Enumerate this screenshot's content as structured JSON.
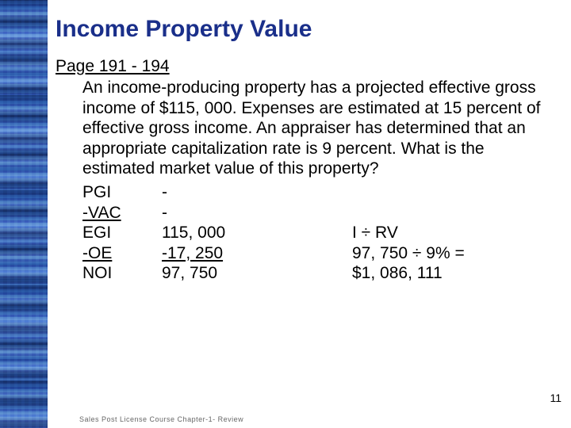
{
  "title": "Income Property Value",
  "page_ref": "Page 191 - 194",
  "paragraph": "An income-producing property has a projected effective gross income of $115, 000.  Expenses are estimated at 15 percent of effective gross income.  An appraiser has determined that an appropriate capitalization rate is 9 percent.  What is the estimated market value of this property?",
  "calc": {
    "rows": [
      {
        "label": "PGI",
        "value": "-",
        "extra": ""
      },
      {
        "label": "-VAC",
        "value": "-",
        "extra": "",
        "label_underline": true
      },
      {
        "label": "EGI",
        "value": "115, 000",
        "extra": "I ÷ RV"
      },
      {
        "label": "-OE",
        "value": "-17, 250",
        "extra": "97, 750 ÷ 9% =",
        "label_underline": true,
        "value_underline": true
      },
      {
        "label": "NOI",
        "value": "97, 750",
        "extra": "$1, 086, 111"
      }
    ]
  },
  "slide_number": "11",
  "footer": "Sales Post License Course Chapter-1- Review",
  "colors": {
    "title": "#1a2f8a",
    "text": "#000000",
    "background": "#ffffff"
  }
}
